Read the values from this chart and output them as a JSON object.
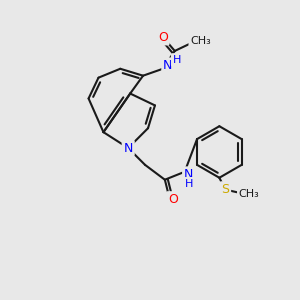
{
  "background_color": "#e8e8e8",
  "bond_color": "#1a1a1a",
  "atom_colors": {
    "N": "#0000ff",
    "O": "#ff0000",
    "S": "#ccaa00",
    "C": "#1a1a1a",
    "H": "#555555"
  },
  "figsize": [
    3.0,
    3.0
  ],
  "dpi": 100,
  "lw": 1.5
}
